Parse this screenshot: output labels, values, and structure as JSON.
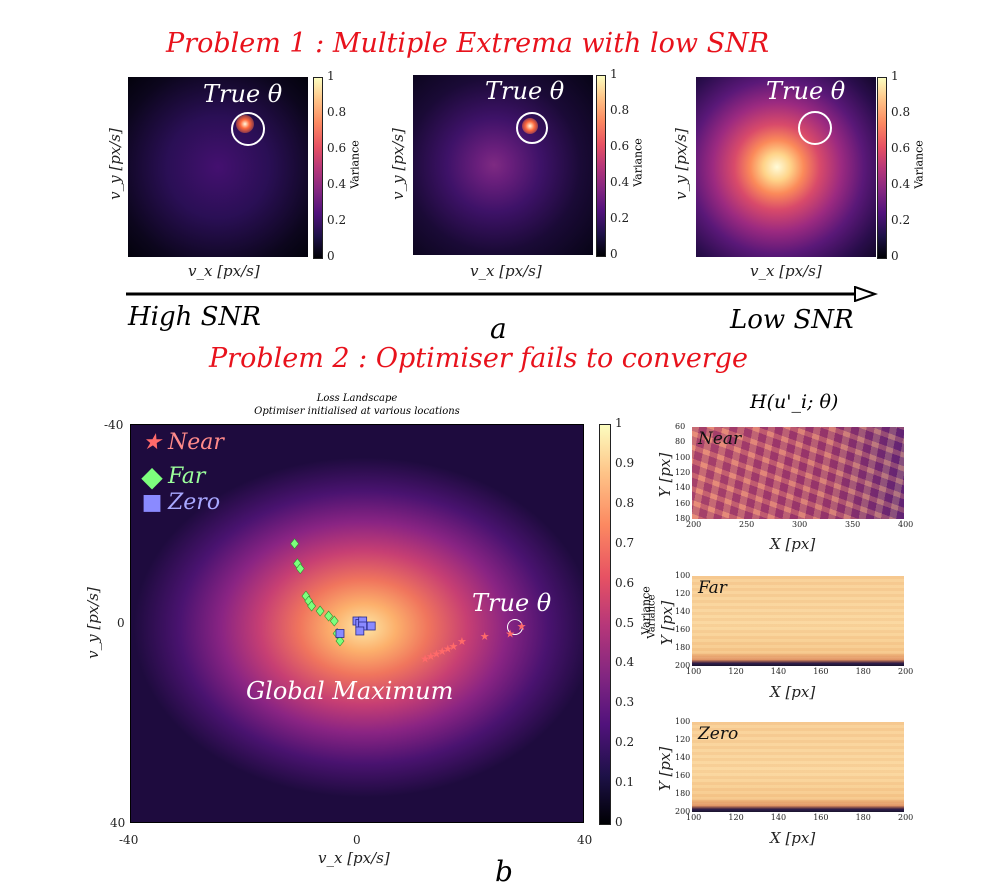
{
  "problem1": {
    "title": "Problem 1 : Multiple Extrema with low SNR",
    "panels": [
      {
        "true_label": "True θ",
        "xlabel": "v_x [px/s]",
        "ylabel": "v_y [px/s]",
        "colorbar_label": "Variance",
        "colorbar_ticks": [
          "1",
          "0.8",
          "0.6",
          "0.4",
          "0.2",
          "0"
        ]
      },
      {
        "true_label": "True θ",
        "xlabel": "v_x [px/s]",
        "ylabel": "v_y [px/s]",
        "colorbar_label": "Variance",
        "colorbar_ticks": [
          "1",
          "0.8",
          "0.6",
          "0.4",
          "0.2",
          "0"
        ]
      },
      {
        "true_label": "True θ",
        "xlabel": "v_x [px/s]",
        "ylabel": "v_y [px/s]",
        "colorbar_label": "Variance",
        "colorbar_ticks": [
          "1",
          "0.8",
          "0.6",
          "0.4",
          "0.2",
          "0"
        ]
      }
    ],
    "arrow_left": "High SNR",
    "arrow_right": "Low SNR",
    "panel_letter": "a"
  },
  "problem2": {
    "title": "Problem 2 : Optimiser fails to converge",
    "panel_letter": "b"
  },
  "chart_data": [
    {
      "type": "scatter",
      "title": "Loss Landscape",
      "subtitle": "Optimiser initialised at various locations",
      "xlabel": "v_x [px/s]",
      "ylabel": "v_y [px/s]",
      "xlim": [
        -40,
        40
      ],
      "ylim": [
        -40,
        40
      ],
      "xticks": [
        "-40",
        "0",
        "40"
      ],
      "yticks": [
        "-40",
        "0",
        "40"
      ],
      "colorbar_label": "Variance",
      "colorbar_ticks": [
        "1",
        "0.9",
        "0.8",
        "0.7",
        "0.6",
        "0.5",
        "0.4",
        "0.3",
        "0.2",
        "0.1",
        "0"
      ],
      "annotations": {
        "true_theta": "True θ",
        "global_max": "Global Maximum"
      },
      "legend": [
        "Near",
        "Far",
        "Zero"
      ],
      "series": [
        {
          "name": "Near",
          "color": "#ff6a6a",
          "points": [
            [
              29,
              0.5
            ],
            [
              27,
              2
            ],
            [
              22.5,
              2.5
            ],
            [
              18.5,
              3.5
            ],
            [
              17,
              4.5
            ],
            [
              16,
              5
            ],
            [
              15,
              5.5
            ],
            [
              14,
              6
            ],
            [
              13,
              6.5
            ],
            [
              12,
              7
            ]
          ]
        },
        {
          "name": "Far",
          "color": "#7dff7d",
          "points": [
            [
              -11,
              -16
            ],
            [
              -10.5,
              -12
            ],
            [
              -10,
              -11
            ],
            [
              -9,
              -5.5
            ],
            [
              -8.5,
              -4.5
            ],
            [
              -8,
              -3.5
            ],
            [
              -6.5,
              -2.5
            ],
            [
              -5,
              -1.5
            ],
            [
              -4,
              -0.5
            ],
            [
              -3.5,
              2
            ],
            [
              -3,
              3.5
            ]
          ]
        },
        {
          "name": "Zero",
          "color": "#8a8aff",
          "points": [
            [
              -3,
              2
            ],
            [
              0,
              -0.5
            ],
            [
              0.5,
              0
            ],
            [
              1,
              -0.5
            ],
            [
              1,
              0.5
            ],
            [
              2.5,
              0.5
            ],
            [
              0.5,
              1.5
            ]
          ]
        }
      ]
    },
    {
      "type": "heatmap",
      "title": "H(u'_i; θ)",
      "panels": [
        {
          "label": "Near",
          "xlabel": "X [px]",
          "ylabel": "Y [px]",
          "xticks": [
            "200",
            "250",
            "300",
            "350",
            "400"
          ],
          "yticks": [
            "60",
            "80",
            "100",
            "120",
            "140",
            "160",
            "180"
          ]
        },
        {
          "label": "Far",
          "xlabel": "X [px]",
          "ylabel": "Y [px]",
          "xticks": [
            "100",
            "120",
            "140",
            "160",
            "180",
            "200"
          ],
          "yticks": [
            "100",
            "120",
            "140",
            "160",
            "180",
            "200"
          ],
          "inner_label": "Variance"
        },
        {
          "label": "Zero",
          "xlabel": "X [px]",
          "ylabel": "Y [px]",
          "xticks": [
            "100",
            "120",
            "140",
            "160",
            "180",
            "200"
          ],
          "yticks": [
            "100",
            "120",
            "140",
            "160",
            "180",
            "200"
          ]
        }
      ]
    }
  ]
}
